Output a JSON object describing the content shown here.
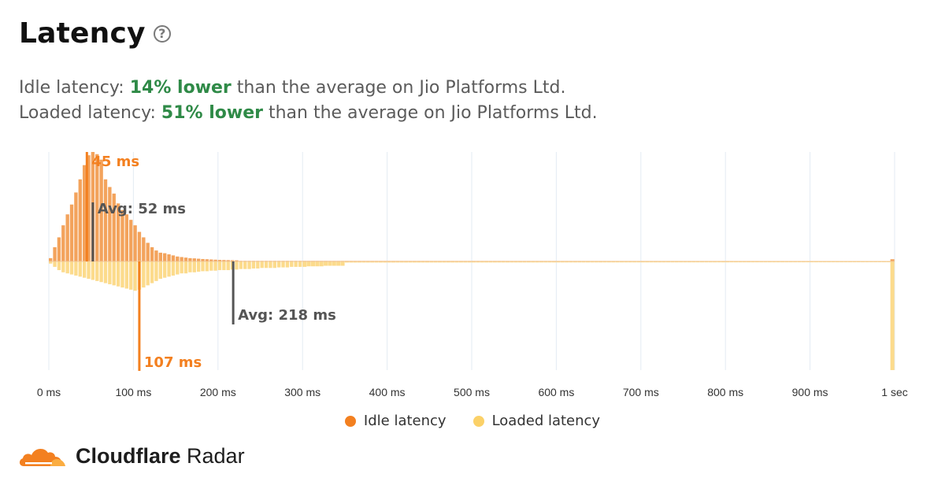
{
  "header": {
    "title": "Latency",
    "help_icon": "question-circle-icon"
  },
  "summary": {
    "idle_prefix": "Idle latency: ",
    "idle_highlight": "14% lower",
    "idle_suffix": " than the average on Jio Platforms Ltd.",
    "loaded_prefix": "Loaded latency: ",
    "loaded_highlight": "51% lower",
    "loaded_suffix": " than the average on Jio Platforms Ltd."
  },
  "colors": {
    "idle": "#f38020",
    "idle_bar": "#f3a35c",
    "loaded": "#fbd168",
    "loaded_bar": "#fcdb8c",
    "positive": "#2f8a47",
    "avg_line": "#555555",
    "grid": "#e3ebf3"
  },
  "chart_data": {
    "type": "bar",
    "subtype": "mirrored-histogram",
    "x_unit": "ms",
    "x_range": [
      0,
      1000
    ],
    "bin_width_ms": 5,
    "tick_values": [
      0,
      100,
      200,
      300,
      400,
      500,
      600,
      700,
      800,
      900,
      1000
    ],
    "tick_labels": [
      "0 ms",
      "100 ms",
      "200 ms",
      "300 ms",
      "400 ms",
      "500 ms",
      "600 ms",
      "700 ms",
      "800 ms",
      "900 ms",
      "1 sec"
    ],
    "grid": true,
    "series": [
      {
        "name": "Idle latency",
        "direction": "up",
        "x_start": 0,
        "values": [
          0.03,
          0.13,
          0.22,
          0.33,
          0.43,
          0.52,
          0.63,
          0.75,
          0.88,
          0.97,
          1.0,
          0.98,
          0.93,
          0.75,
          0.68,
          0.62,
          0.53,
          0.47,
          0.43,
          0.38,
          0.33,
          0.27,
          0.22,
          0.17,
          0.13,
          0.1,
          0.08,
          0.075,
          0.065,
          0.055,
          0.045,
          0.04,
          0.035,
          0.03,
          0.028,
          0.025,
          0.022,
          0.02,
          0.018,
          0.016,
          0.014,
          0.013,
          0.012,
          0.011,
          0.01
        ],
        "tail_value": 0.006,
        "final_bin_value": 0.02,
        "median": 45,
        "median_label": "45 ms",
        "average": 52,
        "average_label": "Avg: 52 ms"
      },
      {
        "name": "Loaded latency",
        "direction": "down",
        "x_start": 0,
        "values": [
          0.02,
          0.05,
          0.08,
          0.1,
          0.11,
          0.12,
          0.13,
          0.14,
          0.15,
          0.16,
          0.17,
          0.18,
          0.19,
          0.2,
          0.21,
          0.22,
          0.23,
          0.24,
          0.25,
          0.26,
          0.27,
          0.26,
          0.24,
          0.22,
          0.2,
          0.18,
          0.16,
          0.15,
          0.14,
          0.13,
          0.12,
          0.11,
          0.11,
          0.1,
          0.1,
          0.095,
          0.09,
          0.09,
          0.085,
          0.085,
          0.08,
          0.08,
          0.08,
          0.075,
          0.075,
          0.07,
          0.07,
          0.07,
          0.065,
          0.065,
          0.06,
          0.06,
          0.06,
          0.06,
          0.055,
          0.055,
          0.055,
          0.05,
          0.05,
          0.05,
          0.05,
          0.045,
          0.045,
          0.045,
          0.045,
          0.04,
          0.04,
          0.04,
          0.04,
          0.04
        ],
        "tail_value": 0.012,
        "final_bin_value": 1.0,
        "median": 107,
        "median_label": "107 ms",
        "average": 218,
        "average_label": "Avg: 218 ms"
      }
    ],
    "legend": [
      "Idle latency",
      "Loaded latency"
    ],
    "legend_position": "bottom-center"
  },
  "brand": {
    "logo": "cloudflare-cloud-logo",
    "name_bold": "Cloudflare",
    "name_regular": " Radar"
  }
}
